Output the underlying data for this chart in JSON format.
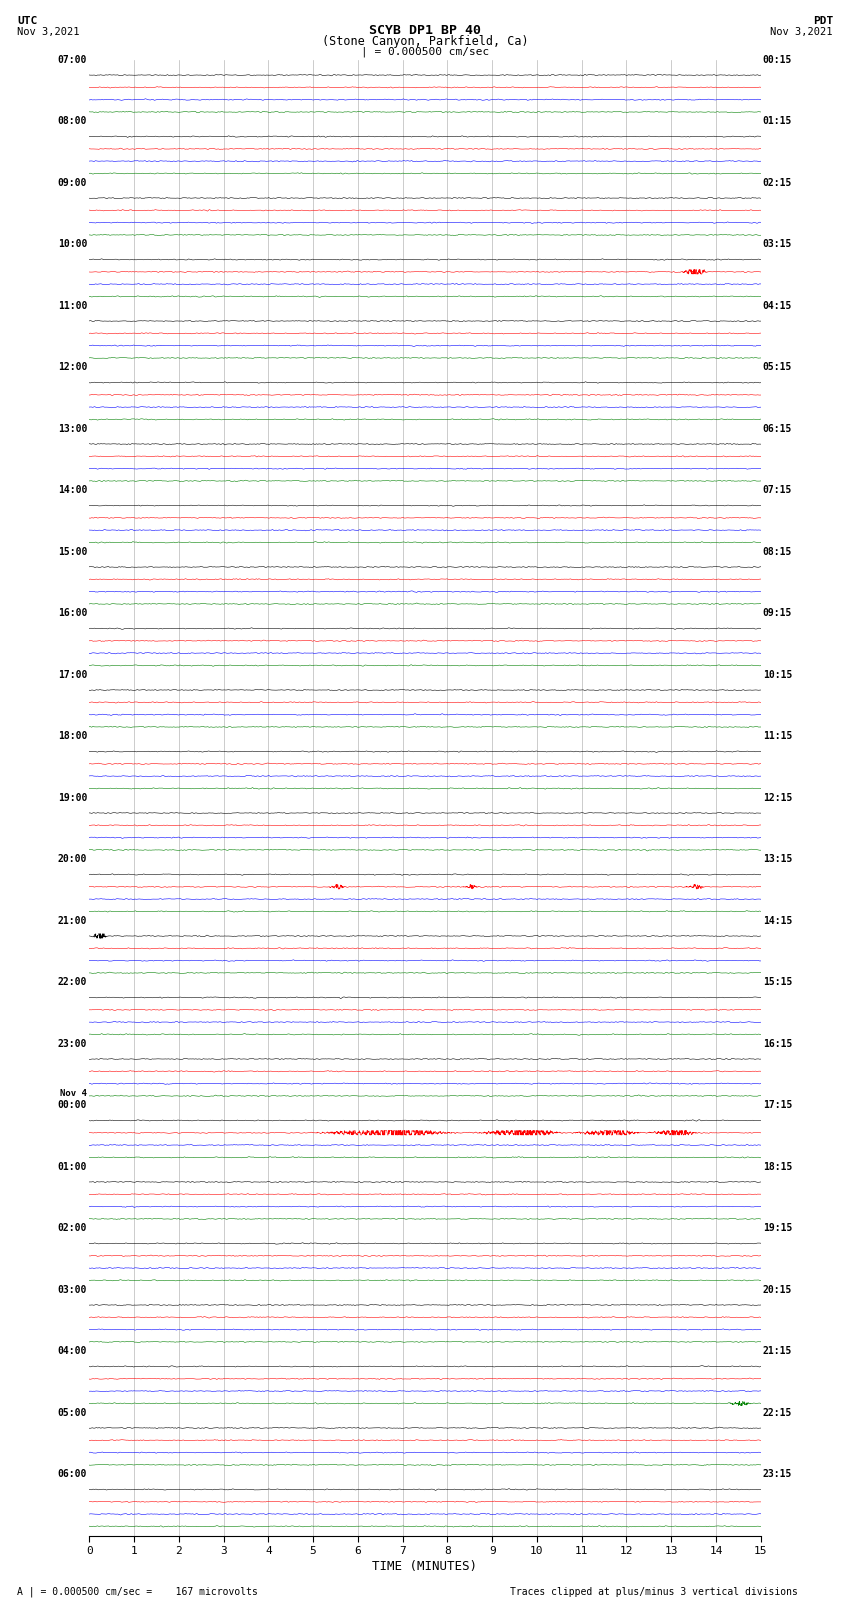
{
  "title_line1": "SCYB DP1 BP 40",
  "title_line2": "(Stone Canyon, Parkfield, Ca)",
  "title_scale": "| = 0.000500 cm/sec",
  "label_utc": "UTC",
  "label_pdt": "PDT",
  "date_left_top": "Nov 3,2021",
  "date_right_top": "Nov 3,2021",
  "xlabel": "TIME (MINUTES)",
  "footer_left": "A | = 0.000500 cm/sec =    167 microvolts",
  "footer_right": "Traces clipped at plus/minus 3 vertical divisions",
  "x_ticks": [
    0,
    1,
    2,
    3,
    4,
    5,
    6,
    7,
    8,
    9,
    10,
    11,
    12,
    13,
    14,
    15
  ],
  "x_min": 0,
  "x_max": 15,
  "bg_color": "white",
  "grid_color": "#888888",
  "num_rows": 24,
  "colors": [
    "black",
    "red",
    "blue",
    "green"
  ],
  "left_times": [
    "07:00",
    "08:00",
    "09:00",
    "10:00",
    "11:00",
    "12:00",
    "13:00",
    "14:00",
    "15:00",
    "16:00",
    "17:00",
    "18:00",
    "19:00",
    "20:00",
    "21:00",
    "22:00",
    "23:00",
    "00:00",
    "01:00",
    "02:00",
    "03:00",
    "04:00",
    "05:00",
    "06:00"
  ],
  "right_times": [
    "00:15",
    "01:15",
    "02:15",
    "03:15",
    "04:15",
    "05:15",
    "06:15",
    "07:15",
    "08:15",
    "09:15",
    "10:15",
    "11:15",
    "12:15",
    "13:15",
    "14:15",
    "15:15",
    "16:15",
    "17:15",
    "18:15",
    "19:15",
    "20:15",
    "21:15",
    "22:15",
    "23:15"
  ],
  "nov4_row": 17,
  "noise_base": 0.012,
  "clip_divs": 3,
  "fig_width": 8.5,
  "fig_height": 16.13,
  "trace_offsets": [
    0.75,
    0.55,
    0.35,
    0.15
  ],
  "events": [
    {
      "row": 3,
      "ci": 1,
      "t": 13.5,
      "amp": 0.18,
      "dur": 0.3
    },
    {
      "row": 13,
      "ci": 1,
      "t": 5.5,
      "amp": 0.06,
      "dur": 0.25
    },
    {
      "row": 13,
      "ci": 1,
      "t": 8.5,
      "amp": 0.05,
      "dur": 0.2
    },
    {
      "row": 13,
      "ci": 1,
      "t": 13.5,
      "amp": 0.06,
      "dur": 0.25
    },
    {
      "row": 14,
      "ci": 0,
      "t": 0.2,
      "amp": 0.12,
      "dur": 0.2
    },
    {
      "row": 17,
      "ci": 1,
      "t": 6.5,
      "amp": 0.22,
      "dur": 1.5
    },
    {
      "row": 17,
      "ci": 1,
      "t": 9.5,
      "amp": 0.18,
      "dur": 1.0
    },
    {
      "row": 17,
      "ci": 1,
      "t": 11.5,
      "amp": 0.14,
      "dur": 0.8
    },
    {
      "row": 17,
      "ci": 1,
      "t": 13.0,
      "amp": 0.12,
      "dur": 0.6
    },
    {
      "row": 21,
      "ci": 3,
      "t": 14.5,
      "amp": 0.06,
      "dur": 0.3
    }
  ]
}
